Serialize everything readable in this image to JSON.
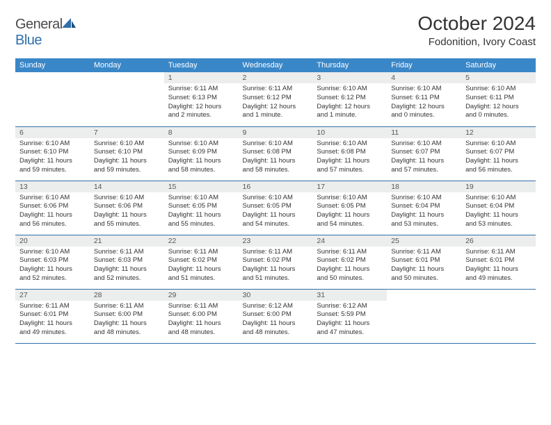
{
  "brand": {
    "general": "General",
    "blue": "Blue"
  },
  "title": "October 2024",
  "location": "Fodonition, Ivory Coast",
  "colors": {
    "header_bg": "#3a87c8",
    "border": "#2f6faa",
    "daynum_bg": "#eceded"
  },
  "weekdays": [
    "Sunday",
    "Monday",
    "Tuesday",
    "Wednesday",
    "Thursday",
    "Friday",
    "Saturday"
  ],
  "weeks": [
    [
      null,
      null,
      {
        "n": "1",
        "sr": "Sunrise: 6:11 AM",
        "ss": "Sunset: 6:13 PM",
        "d1": "Daylight: 12 hours",
        "d2": "and 2 minutes."
      },
      {
        "n": "2",
        "sr": "Sunrise: 6:11 AM",
        "ss": "Sunset: 6:12 PM",
        "d1": "Daylight: 12 hours",
        "d2": "and 1 minute."
      },
      {
        "n": "3",
        "sr": "Sunrise: 6:10 AM",
        "ss": "Sunset: 6:12 PM",
        "d1": "Daylight: 12 hours",
        "d2": "and 1 minute."
      },
      {
        "n": "4",
        "sr": "Sunrise: 6:10 AM",
        "ss": "Sunset: 6:11 PM",
        "d1": "Daylight: 12 hours",
        "d2": "and 0 minutes."
      },
      {
        "n": "5",
        "sr": "Sunrise: 6:10 AM",
        "ss": "Sunset: 6:11 PM",
        "d1": "Daylight: 12 hours",
        "d2": "and 0 minutes."
      }
    ],
    [
      {
        "n": "6",
        "sr": "Sunrise: 6:10 AM",
        "ss": "Sunset: 6:10 PM",
        "d1": "Daylight: 11 hours",
        "d2": "and 59 minutes."
      },
      {
        "n": "7",
        "sr": "Sunrise: 6:10 AM",
        "ss": "Sunset: 6:10 PM",
        "d1": "Daylight: 11 hours",
        "d2": "and 59 minutes."
      },
      {
        "n": "8",
        "sr": "Sunrise: 6:10 AM",
        "ss": "Sunset: 6:09 PM",
        "d1": "Daylight: 11 hours",
        "d2": "and 58 minutes."
      },
      {
        "n": "9",
        "sr": "Sunrise: 6:10 AM",
        "ss": "Sunset: 6:08 PM",
        "d1": "Daylight: 11 hours",
        "d2": "and 58 minutes."
      },
      {
        "n": "10",
        "sr": "Sunrise: 6:10 AM",
        "ss": "Sunset: 6:08 PM",
        "d1": "Daylight: 11 hours",
        "d2": "and 57 minutes."
      },
      {
        "n": "11",
        "sr": "Sunrise: 6:10 AM",
        "ss": "Sunset: 6:07 PM",
        "d1": "Daylight: 11 hours",
        "d2": "and 57 minutes."
      },
      {
        "n": "12",
        "sr": "Sunrise: 6:10 AM",
        "ss": "Sunset: 6:07 PM",
        "d1": "Daylight: 11 hours",
        "d2": "and 56 minutes."
      }
    ],
    [
      {
        "n": "13",
        "sr": "Sunrise: 6:10 AM",
        "ss": "Sunset: 6:06 PM",
        "d1": "Daylight: 11 hours",
        "d2": "and 56 minutes."
      },
      {
        "n": "14",
        "sr": "Sunrise: 6:10 AM",
        "ss": "Sunset: 6:06 PM",
        "d1": "Daylight: 11 hours",
        "d2": "and 55 minutes."
      },
      {
        "n": "15",
        "sr": "Sunrise: 6:10 AM",
        "ss": "Sunset: 6:05 PM",
        "d1": "Daylight: 11 hours",
        "d2": "and 55 minutes."
      },
      {
        "n": "16",
        "sr": "Sunrise: 6:10 AM",
        "ss": "Sunset: 6:05 PM",
        "d1": "Daylight: 11 hours",
        "d2": "and 54 minutes."
      },
      {
        "n": "17",
        "sr": "Sunrise: 6:10 AM",
        "ss": "Sunset: 6:05 PM",
        "d1": "Daylight: 11 hours",
        "d2": "and 54 minutes."
      },
      {
        "n": "18",
        "sr": "Sunrise: 6:10 AM",
        "ss": "Sunset: 6:04 PM",
        "d1": "Daylight: 11 hours",
        "d2": "and 53 minutes."
      },
      {
        "n": "19",
        "sr": "Sunrise: 6:10 AM",
        "ss": "Sunset: 6:04 PM",
        "d1": "Daylight: 11 hours",
        "d2": "and 53 minutes."
      }
    ],
    [
      {
        "n": "20",
        "sr": "Sunrise: 6:10 AM",
        "ss": "Sunset: 6:03 PM",
        "d1": "Daylight: 11 hours",
        "d2": "and 52 minutes."
      },
      {
        "n": "21",
        "sr": "Sunrise: 6:11 AM",
        "ss": "Sunset: 6:03 PM",
        "d1": "Daylight: 11 hours",
        "d2": "and 52 minutes."
      },
      {
        "n": "22",
        "sr": "Sunrise: 6:11 AM",
        "ss": "Sunset: 6:02 PM",
        "d1": "Daylight: 11 hours",
        "d2": "and 51 minutes."
      },
      {
        "n": "23",
        "sr": "Sunrise: 6:11 AM",
        "ss": "Sunset: 6:02 PM",
        "d1": "Daylight: 11 hours",
        "d2": "and 51 minutes."
      },
      {
        "n": "24",
        "sr": "Sunrise: 6:11 AM",
        "ss": "Sunset: 6:02 PM",
        "d1": "Daylight: 11 hours",
        "d2": "and 50 minutes."
      },
      {
        "n": "25",
        "sr": "Sunrise: 6:11 AM",
        "ss": "Sunset: 6:01 PM",
        "d1": "Daylight: 11 hours",
        "d2": "and 50 minutes."
      },
      {
        "n": "26",
        "sr": "Sunrise: 6:11 AM",
        "ss": "Sunset: 6:01 PM",
        "d1": "Daylight: 11 hours",
        "d2": "and 49 minutes."
      }
    ],
    [
      {
        "n": "27",
        "sr": "Sunrise: 6:11 AM",
        "ss": "Sunset: 6:01 PM",
        "d1": "Daylight: 11 hours",
        "d2": "and 49 minutes."
      },
      {
        "n": "28",
        "sr": "Sunrise: 6:11 AM",
        "ss": "Sunset: 6:00 PM",
        "d1": "Daylight: 11 hours",
        "d2": "and 48 minutes."
      },
      {
        "n": "29",
        "sr": "Sunrise: 6:11 AM",
        "ss": "Sunset: 6:00 PM",
        "d1": "Daylight: 11 hours",
        "d2": "and 48 minutes."
      },
      {
        "n": "30",
        "sr": "Sunrise: 6:12 AM",
        "ss": "Sunset: 6:00 PM",
        "d1": "Daylight: 11 hours",
        "d2": "and 48 minutes."
      },
      {
        "n": "31",
        "sr": "Sunrise: 6:12 AM",
        "ss": "Sunset: 5:59 PM",
        "d1": "Daylight: 11 hours",
        "d2": "and 47 minutes."
      },
      null,
      null
    ]
  ]
}
